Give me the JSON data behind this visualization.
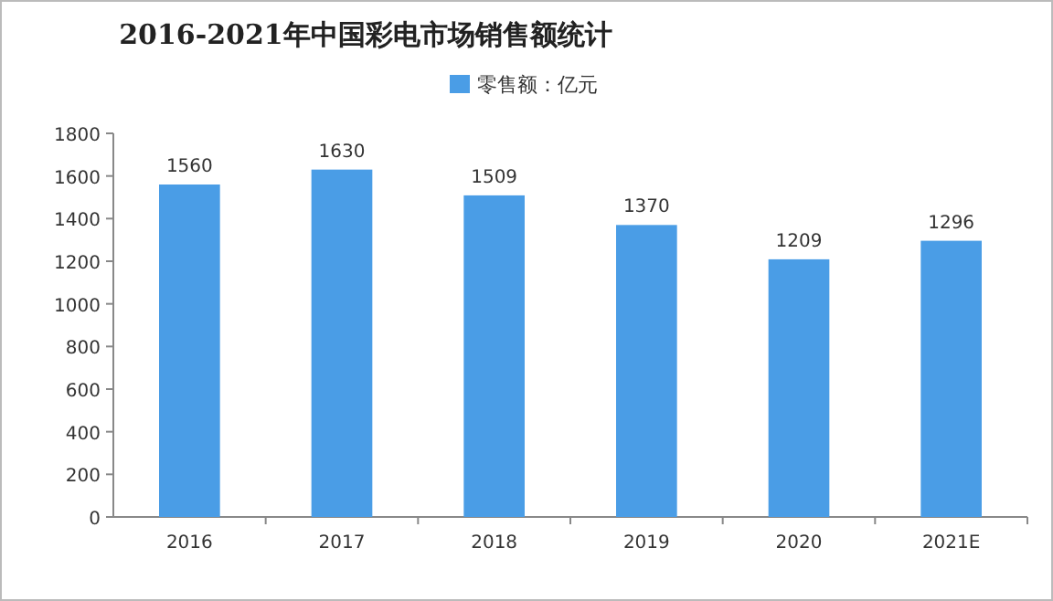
{
  "chart_data": {
    "type": "bar",
    "title": "2016-2021年中国彩电市场销售额统计",
    "categories": [
      "2016",
      "2017",
      "2018",
      "2019",
      "2020",
      "2021E"
    ],
    "series": [
      {
        "name": "零售额：亿元",
        "color": "#4a9de6",
        "values": [
          1560,
          1630,
          1509,
          1370,
          1209,
          1296
        ]
      }
    ],
    "ylim": [
      0,
      1800
    ],
    "yticks": [
      0,
      200,
      400,
      600,
      800,
      1000,
      1200,
      1400,
      1600,
      1800
    ],
    "data_labels": true,
    "legend": "top"
  }
}
